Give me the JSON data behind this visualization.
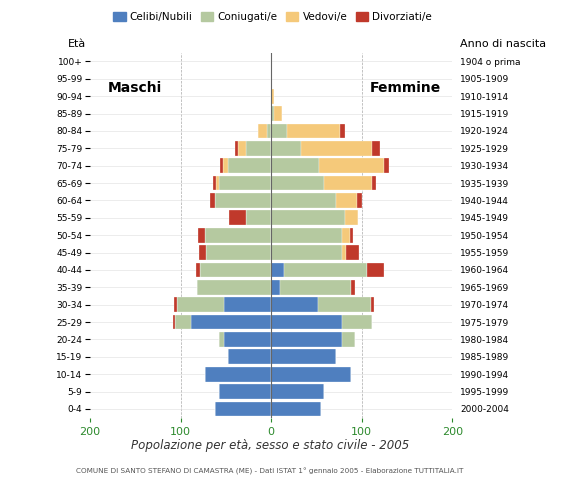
{
  "age_groups_bottom_to_top": [
    "0-4",
    "5-9",
    "10-14",
    "15-19",
    "20-24",
    "25-29",
    "30-34",
    "35-39",
    "40-44",
    "45-49",
    "50-54",
    "55-59",
    "60-64",
    "65-69",
    "70-74",
    "75-79",
    "80-84",
    "85-89",
    "90-94",
    "95-99",
    "100+"
  ],
  "birth_years_bottom_to_top": [
    "2000-2004",
    "1995-1999",
    "1990-1994",
    "1985-1989",
    "1980-1984",
    "1975-1979",
    "1970-1974",
    "1965-1969",
    "1960-1964",
    "1955-1959",
    "1950-1954",
    "1945-1949",
    "1940-1944",
    "1935-1939",
    "1930-1934",
    "1925-1929",
    "1920-1924",
    "1915-1919",
    "1910-1914",
    "1905-1909",
    "1904 o prima"
  ],
  "males_celibi": [
    62,
    58,
    73,
    48,
    52,
    88,
    52,
    0,
    0,
    0,
    0,
    0,
    0,
    0,
    0,
    0,
    0,
    0,
    0,
    0,
    0
  ],
  "males_coniugati": [
    0,
    0,
    0,
    0,
    5,
    18,
    52,
    82,
    78,
    72,
    73,
    28,
    62,
    58,
    48,
    28,
    5,
    0,
    0,
    0,
    0
  ],
  "males_vedovi": [
    0,
    0,
    0,
    0,
    0,
    0,
    0,
    0,
    0,
    0,
    0,
    0,
    0,
    3,
    5,
    9,
    9,
    0,
    0,
    0,
    0
  ],
  "males_divorziati": [
    0,
    0,
    0,
    0,
    0,
    2,
    3,
    0,
    5,
    8,
    8,
    18,
    5,
    3,
    3,
    3,
    0,
    0,
    0,
    0,
    0
  ],
  "females_nubili": [
    55,
    58,
    88,
    72,
    78,
    78,
    52,
    10,
    14,
    0,
    0,
    0,
    0,
    0,
    0,
    0,
    0,
    0,
    0,
    0,
    0
  ],
  "females_coniugate": [
    0,
    0,
    0,
    0,
    14,
    33,
    58,
    78,
    92,
    78,
    78,
    82,
    72,
    58,
    53,
    33,
    18,
    3,
    0,
    0,
    0
  ],
  "females_vedove": [
    0,
    0,
    0,
    0,
    0,
    0,
    0,
    0,
    0,
    5,
    9,
    14,
    23,
    53,
    72,
    78,
    58,
    9,
    3,
    0,
    0
  ],
  "females_divorziate": [
    0,
    0,
    0,
    0,
    0,
    0,
    3,
    5,
    18,
    14,
    3,
    0,
    5,
    5,
    5,
    9,
    5,
    0,
    0,
    0,
    0
  ],
  "colors": {
    "celibi": "#4f7fbf",
    "coniugati": "#b5c9a0",
    "vedovi": "#f5c97a",
    "divorziati": "#c0392b"
  },
  "footer": "COMUNE DI SANTO STEFANO DI CAMASTRA (ME) - Dati ISTAT 1° gennaio 2005 - Elaborazione TUTTITALIA.IT"
}
